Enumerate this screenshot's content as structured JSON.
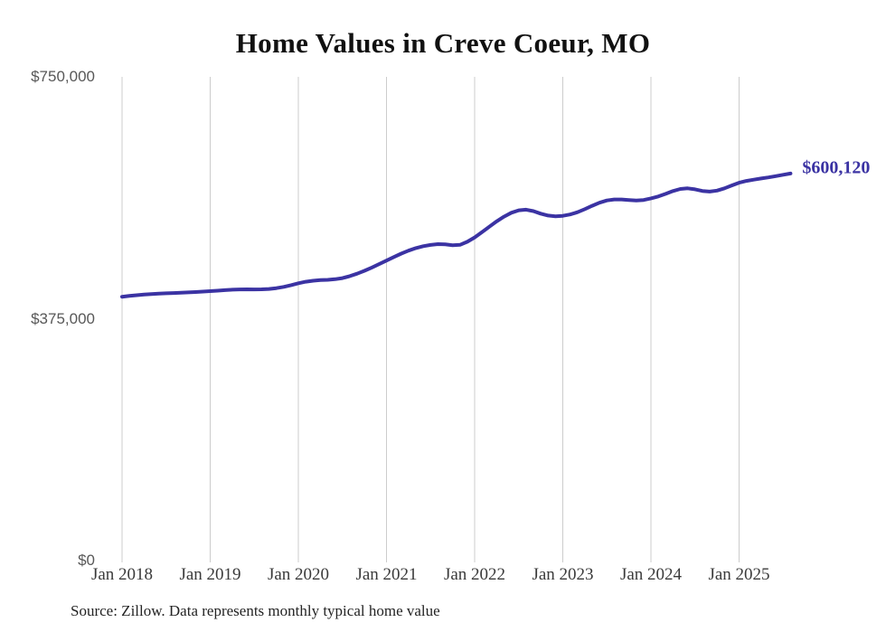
{
  "chart_data": {
    "type": "line",
    "title": "Home Values in Creve Coeur, MO",
    "source": "Source: Zillow. Data represents monthly typical home value",
    "end_label": "$600,120",
    "latest_value": 600120,
    "line_color": "#3b33a3",
    "gridline_color": "#cccccc",
    "ylabel": "",
    "xlabel": "",
    "ylim": [
      0,
      750000
    ],
    "grid": "vertical-only",
    "legend": "none",
    "y_ticks": [
      {
        "label": "$750,000",
        "value": 750000
      },
      {
        "label": "$375,000",
        "value": 375000
      },
      {
        "label": "$0",
        "value": 0
      }
    ],
    "x_tick_labels": [
      "Jan 2018",
      "Jan 2019",
      "Jan 2020",
      "Jan 2021",
      "Jan 2022",
      "Jan 2023",
      "Jan 2024",
      "Jan 2025"
    ],
    "series": [
      {
        "name": "Typical home value",
        "frequency": "monthly",
        "x_start": "2018-01",
        "x_end": "2025-08",
        "values": [
          409000,
          410300,
          411500,
          412500,
          413300,
          413900,
          414400,
          414800,
          415300,
          415800,
          416400,
          417000,
          417700,
          418500,
          419300,
          420000,
          420400,
          420500,
          420400,
          420500,
          421100,
          422400,
          424300,
          427000,
          430000,
          432300,
          433900,
          434800,
          435300,
          436200,
          438000,
          441000,
          444800,
          449300,
          454300,
          459700,
          465200,
          470600,
          475900,
          480600,
          484500,
          487400,
          489400,
          490600,
          490300,
          489000,
          489600,
          494300,
          501000,
          509200,
          517700,
          526000,
          533300,
          539300,
          543100,
          544000,
          541800,
          537900,
          534900,
          533900,
          534600,
          536600,
          540100,
          544900,
          550100,
          554900,
          558300,
          559900,
          559900,
          559000,
          558300,
          559100,
          561600,
          564600,
          568600,
          572900,
          576100,
          577100,
          575600,
          573100,
          572100,
          573600,
          577100,
          581600,
          585900,
          588600,
          590600,
          592400,
          594100,
          596100,
          598200,
          600120
        ]
      }
    ]
  }
}
